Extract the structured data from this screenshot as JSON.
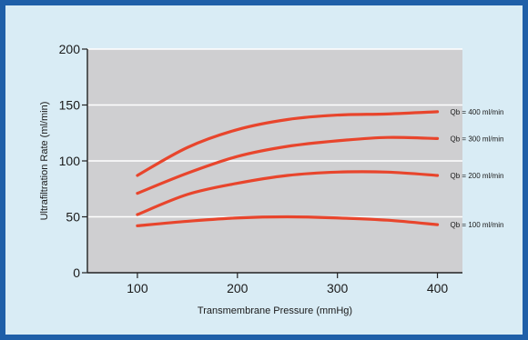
{
  "chart_data": {
    "type": "line",
    "xlabel": "Transmembrane Pressure (mmHg)",
    "ylabel": "Ultrafiltration Rate (ml/min)",
    "xlim": [
      50,
      425
    ],
    "ylim": [
      0,
      200
    ],
    "x_ticks": [
      100,
      200,
      300,
      400
    ],
    "y_ticks": [
      0,
      50,
      100,
      150,
      200
    ],
    "grid": "horizontal",
    "colors": {
      "frame": "#1f5fa8",
      "background": "#d9ecf5",
      "plot": "#cfcfd1",
      "line": "#e8452c",
      "grid": "#ffffff"
    },
    "series": [
      {
        "name": "Qb = 400 ml/min",
        "x": [
          100,
          150,
          200,
          250,
          300,
          350,
          400
        ],
        "y": [
          87,
          112,
          128,
          137,
          141,
          142,
          144
        ]
      },
      {
        "name": "Qb = 300 ml/min",
        "x": [
          100,
          150,
          200,
          250,
          300,
          350,
          400
        ],
        "y": [
          71,
          89,
          104,
          113,
          118,
          121,
          120
        ]
      },
      {
        "name": "Qb = 200 ml/min",
        "x": [
          100,
          150,
          200,
          250,
          300,
          350,
          400
        ],
        "y": [
          52,
          70,
          80,
          87,
          90,
          90,
          87
        ]
      },
      {
        "name": "Qb = 100 ml/min",
        "x": [
          100,
          150,
          200,
          250,
          300,
          350,
          400
        ],
        "y": [
          42,
          46,
          49,
          50,
          49,
          47,
          43
        ]
      }
    ]
  }
}
